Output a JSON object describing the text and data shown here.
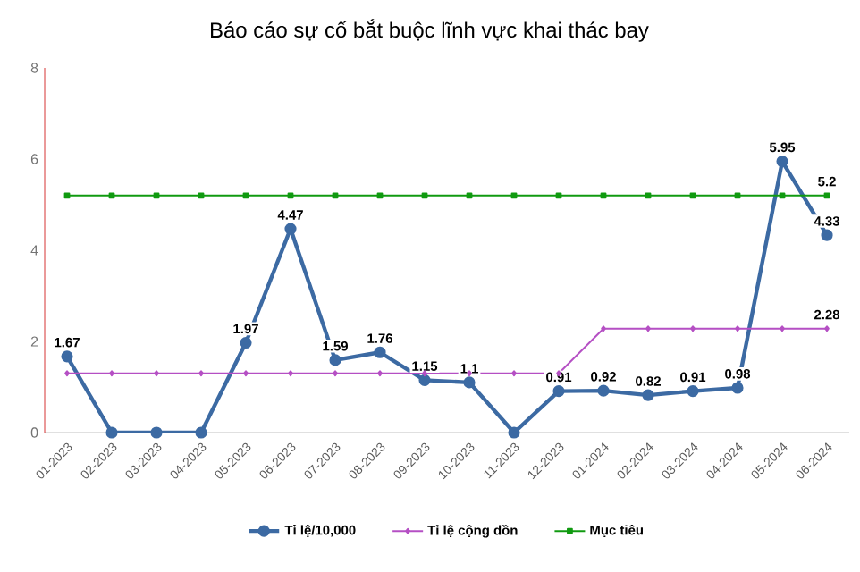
{
  "chart_data": {
    "type": "line",
    "title": "Báo cáo sự cố bắt buộc lĩnh vực khai thác bay",
    "categories": [
      "01-2023",
      "02-2023",
      "03-2023",
      "04-2023",
      "05-2023",
      "06-2023",
      "07-2023",
      "08-2023",
      "09-2023",
      "10-2023",
      "11-2023",
      "12-2023",
      "01-2024",
      "02-2024",
      "03-2024",
      "04-2024",
      "05-2024",
      "06-2024"
    ],
    "series": [
      {
        "name": "Tỉ lệ/10,000",
        "color": "#3c6aa3",
        "marker": "circle",
        "values": [
          1.67,
          0,
          0,
          0,
          1.97,
          4.47,
          1.59,
          1.76,
          1.15,
          1.1,
          0,
          0.91,
          0.92,
          0.82,
          0.91,
          0.98,
          5.95,
          4.33
        ],
        "value_labels": [
          "1.67",
          null,
          null,
          null,
          "1.97",
          "4.47",
          "1.59",
          "1.76",
          "1.15",
          "1.1",
          null,
          "0.91",
          "0.92",
          "0.82",
          "0.91",
          "0.98",
          "5.95",
          "4.33"
        ]
      },
      {
        "name": "Tỉ lệ cộng dồn",
        "color": "#b54fc4",
        "marker": "diamond",
        "values": [
          1.3,
          1.3,
          1.3,
          1.3,
          1.3,
          1.3,
          1.3,
          1.3,
          1.3,
          1.3,
          1.3,
          1.3,
          2.28,
          2.28,
          2.28,
          2.28,
          2.28,
          2.28
        ],
        "value_labels": [
          null,
          null,
          null,
          null,
          null,
          null,
          null,
          null,
          null,
          null,
          null,
          null,
          null,
          null,
          null,
          null,
          null,
          "2.28"
        ]
      },
      {
        "name": "Mục tiêu",
        "color": "#109a10",
        "marker": "square",
        "values": [
          5.2,
          5.2,
          5.2,
          5.2,
          5.2,
          5.2,
          5.2,
          5.2,
          5.2,
          5.2,
          5.2,
          5.2,
          5.2,
          5.2,
          5.2,
          5.2,
          5.2,
          5.2
        ],
        "value_labels": [
          null,
          null,
          null,
          null,
          null,
          null,
          null,
          null,
          null,
          null,
          null,
          null,
          null,
          null,
          null,
          null,
          null,
          "5.2"
        ]
      }
    ],
    "ylim": [
      0,
      8
    ],
    "yticks": [
      0,
      2,
      4,
      6,
      8
    ],
    "grid": false,
    "legend": "bottom"
  }
}
